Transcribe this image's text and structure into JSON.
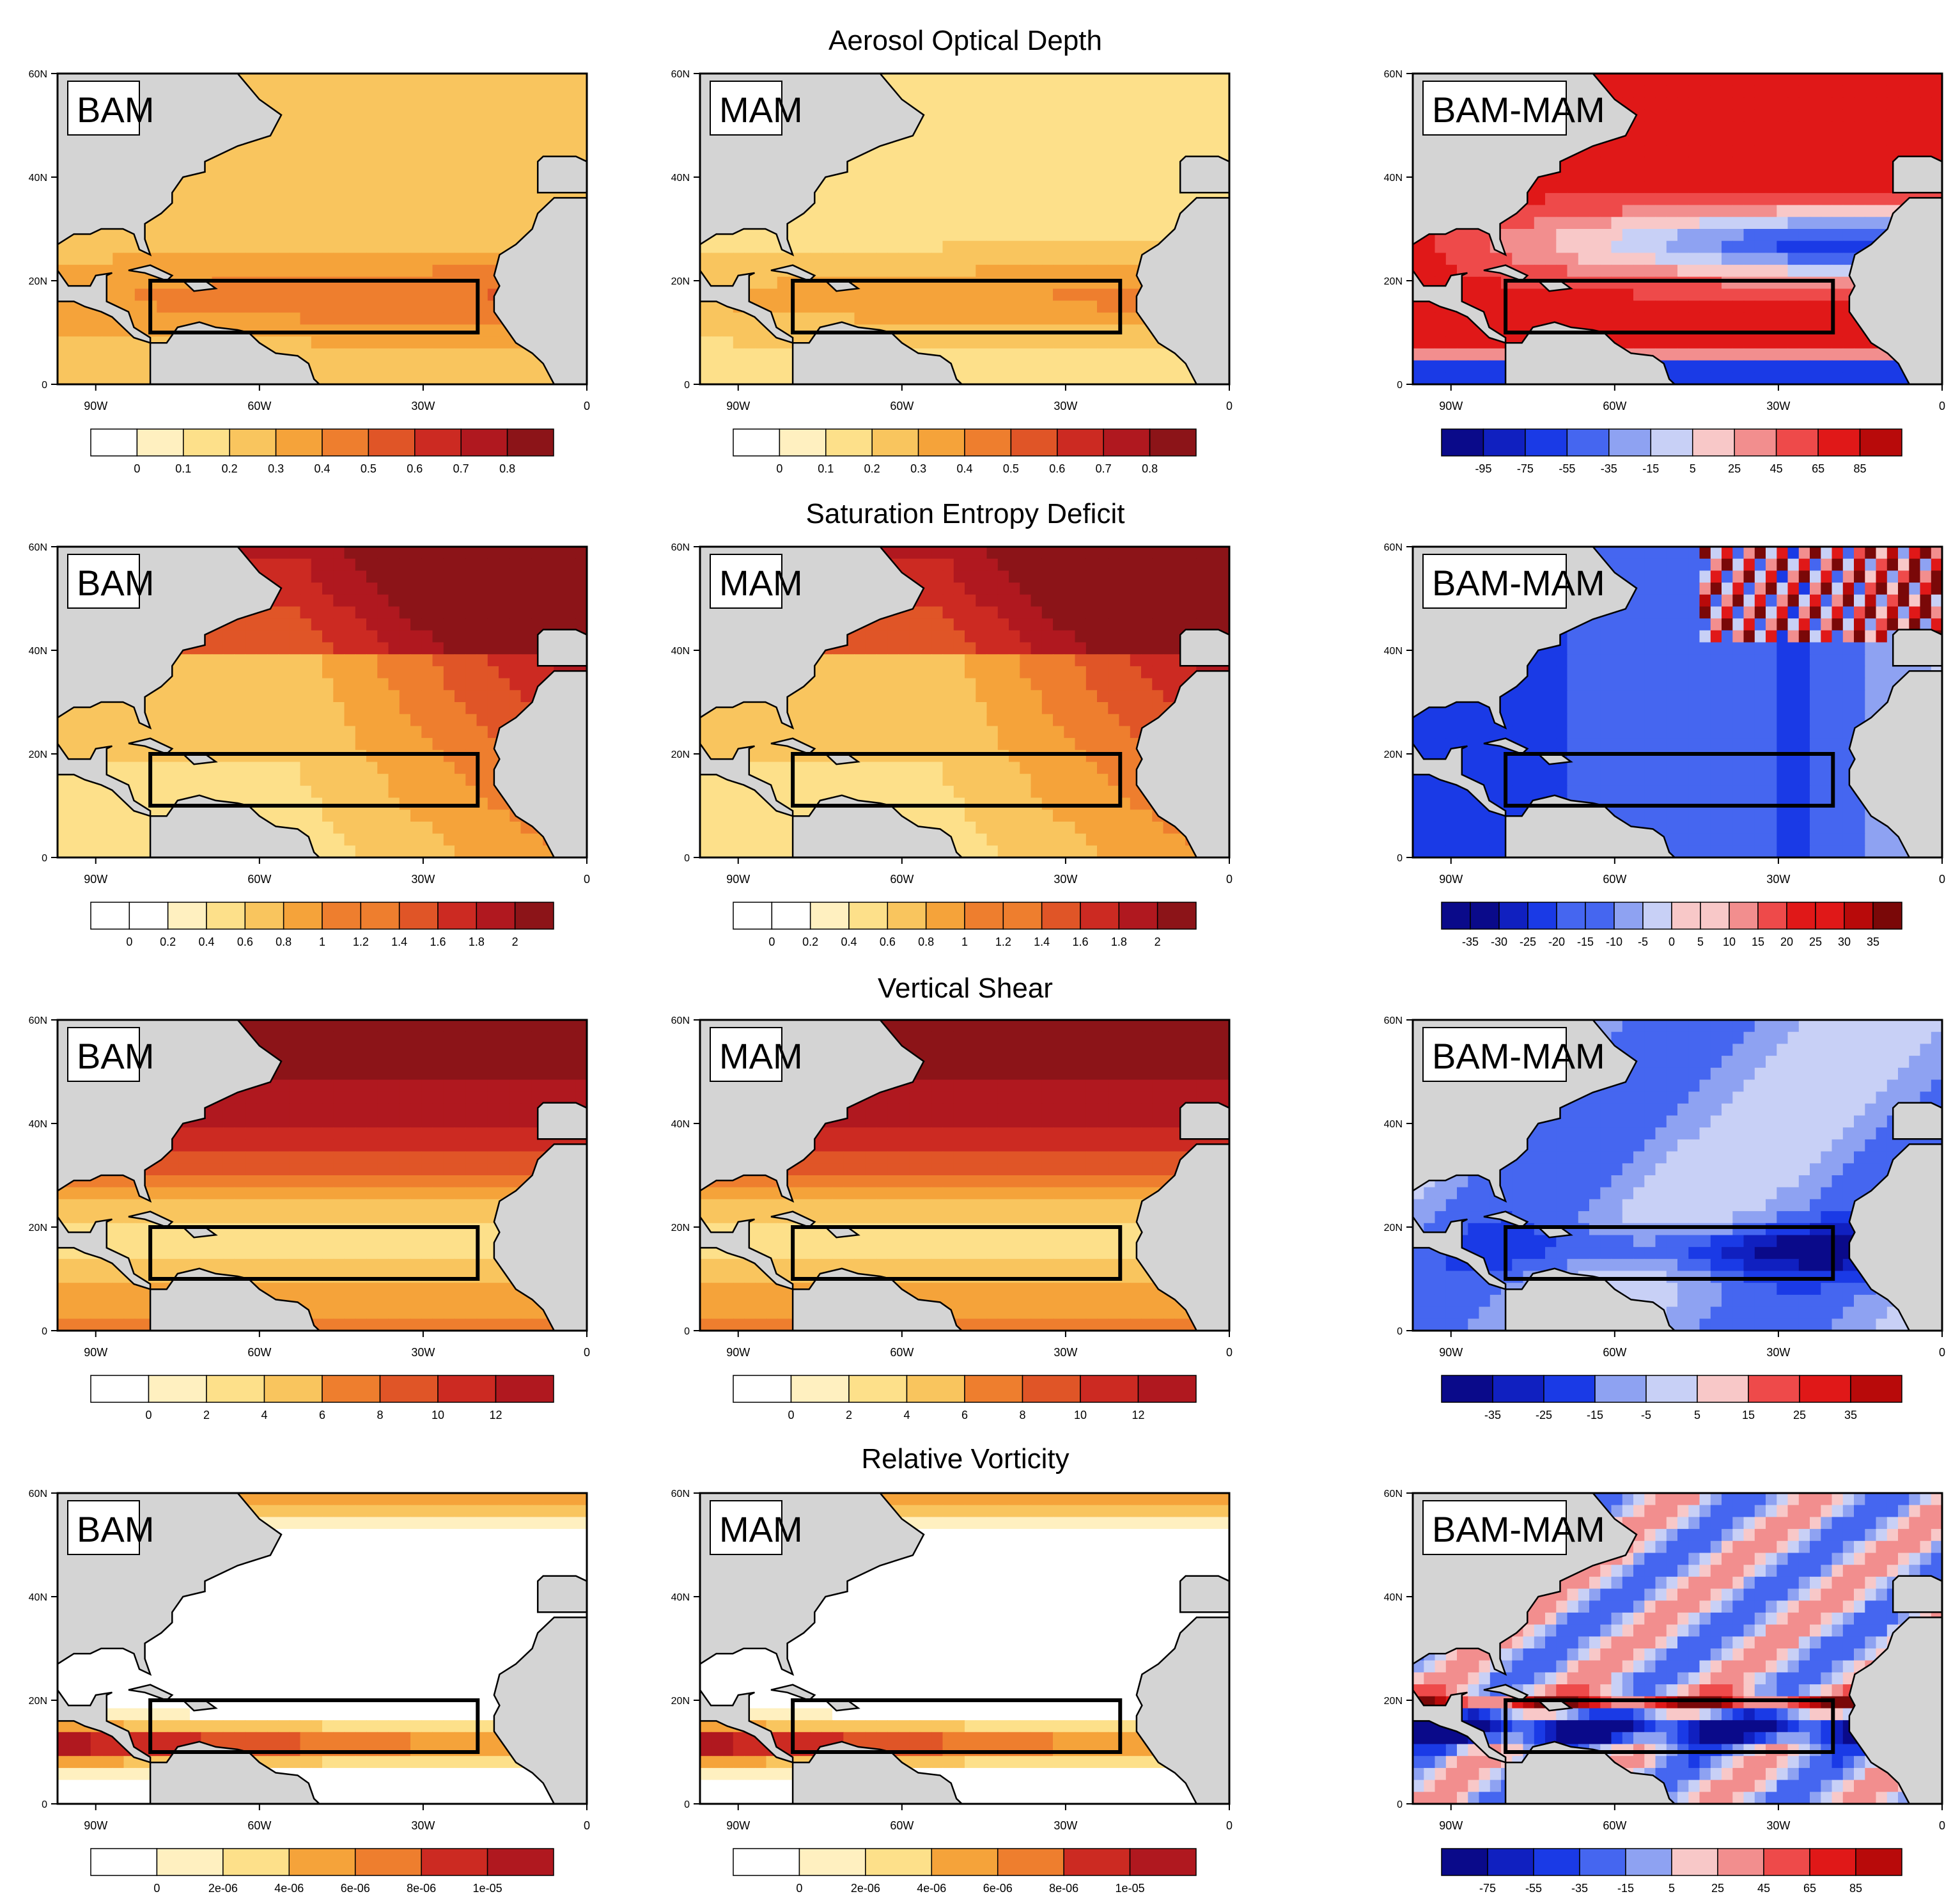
{
  "chart_data": {
    "type": "heatmap",
    "layout": "4 rows x 3 columns of map panels",
    "region": "North Atlantic basin",
    "box_region": {
      "lon_range": [
        "80W",
        "20W"
      ],
      "lat_range": [
        "10N",
        "20N"
      ]
    },
    "x_ticks": [
      "90W",
      "60W",
      "30W",
      "0"
    ],
    "y_ticks": [
      "0",
      "20N",
      "40N",
      "60N"
    ],
    "colors": {
      "land": "#d4d4d4",
      "box": "#000000"
    },
    "rows": [
      {
        "title": "Aerosol Optical Depth",
        "panels": [
          {
            "label": "BAM",
            "palette": "white-yellow-orange-red",
            "scale": [
              "0",
              "0.1",
              "0.2",
              "0.3",
              "0.4",
              "0.5",
              "0.6",
              "0.7",
              "0.8"
            ]
          },
          {
            "label": "MAM",
            "palette": "white-yellow-orange-red",
            "scale": [
              "0",
              "0.1",
              "0.2",
              "0.3",
              "0.4",
              "0.5",
              "0.6",
              "0.7",
              "0.8"
            ]
          },
          {
            "label": "BAM-MAM",
            "palette": "blue-white-red",
            "scale": [
              "-95",
              "-75",
              "-55",
              "-35",
              "-15",
              "5",
              "25",
              "45",
              "65",
              "85"
            ]
          }
        ]
      },
      {
        "title": "Saturation Entropy Deficit",
        "panels": [
          {
            "label": "BAM",
            "palette": "white-yellow-orange-red",
            "scale": [
              "0",
              "0.2",
              "0.4",
              "0.6",
              "0.8",
              "1",
              "1.2",
              "1.4",
              "1.6",
              "1.8",
              "2"
            ]
          },
          {
            "label": "MAM",
            "palette": "white-yellow-orange-red",
            "scale": [
              "0",
              "0.2",
              "0.4",
              "0.6",
              "0.8",
              "1",
              "1.2",
              "1.4",
              "1.6",
              "1.8",
              "2"
            ]
          },
          {
            "label": "BAM-MAM",
            "palette": "blue-white-red",
            "scale": [
              "-35",
              "-30",
              "-25",
              "-20",
              "-15",
              "-10",
              "-5",
              "0",
              "5",
              "10",
              "15",
              "20",
              "25",
              "30",
              "35"
            ]
          }
        ]
      },
      {
        "title": "Vertical Shear",
        "panels": [
          {
            "label": "BAM",
            "palette": "white-yellow-orange-red",
            "scale": [
              "0",
              "2",
              "4",
              "6",
              "8",
              "10",
              "12"
            ]
          },
          {
            "label": "MAM",
            "palette": "white-yellow-orange-red",
            "scale": [
              "0",
              "2",
              "4",
              "6",
              "8",
              "10",
              "12"
            ]
          },
          {
            "label": "BAM-MAM",
            "palette": "blue-white-red",
            "scale": [
              "-35",
              "-25",
              "-15",
              "-5",
              "5",
              "15",
              "25",
              "35"
            ]
          }
        ]
      },
      {
        "title": "Relative Vorticity",
        "panels": [
          {
            "label": "BAM",
            "palette": "white-yellow-orange-red",
            "scale": [
              "0",
              "2e-06",
              "4e-06",
              "6e-06",
              "8e-06",
              "1e-05"
            ]
          },
          {
            "label": "MAM",
            "palette": "white-yellow-orange-red",
            "scale": [
              "0",
              "2e-06",
              "4e-06",
              "6e-06",
              "8e-06",
              "1e-05"
            ]
          },
          {
            "label": "BAM-MAM",
            "palette": "blue-white-red",
            "scale": [
              "-75",
              "-55",
              "-35",
              "-15",
              "5",
              "25",
              "45",
              "65",
              "85"
            ]
          }
        ]
      }
    ],
    "palettes": {
      "white-yellow-orange-red": [
        "#ffffff",
        "#fff0c0",
        "#fde08a",
        "#f9c55e",
        "#f5a33a",
        "#ee7e2e",
        "#e05527",
        "#cc2a22",
        "#b0181f",
        "#8c1418"
      ],
      "blue-white-red": [
        "#0a0a8a",
        "#1020c0",
        "#1a3ae6",
        "#4566f0",
        "#8ea2f2",
        "#c8d0f6",
        "#f8c8c8",
        "#f28e8e",
        "#ee4a4a",
        "#e01818",
        "#b80a0a",
        "#7a0808"
      ]
    }
  }
}
